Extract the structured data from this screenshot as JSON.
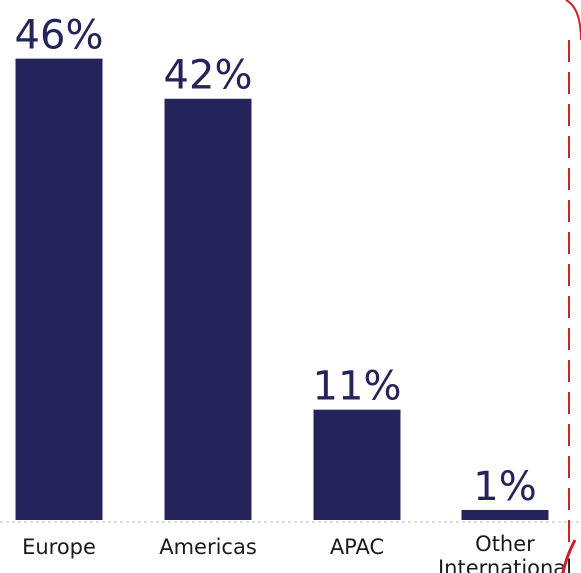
{
  "chart_data": {
    "type": "bar",
    "categories": [
      "Europe",
      "Americas",
      "APAC",
      "Other International"
    ],
    "values": [
      46,
      42,
      11,
      1
    ],
    "value_labels": [
      "46%",
      "42%",
      "11%",
      "1%"
    ],
    "title": "",
    "xlabel": "",
    "ylabel": "",
    "ylim": [
      0,
      50
    ],
    "grid": false,
    "legend": "none",
    "bar_color": "#25245a",
    "accent_color": "#d0202a"
  }
}
